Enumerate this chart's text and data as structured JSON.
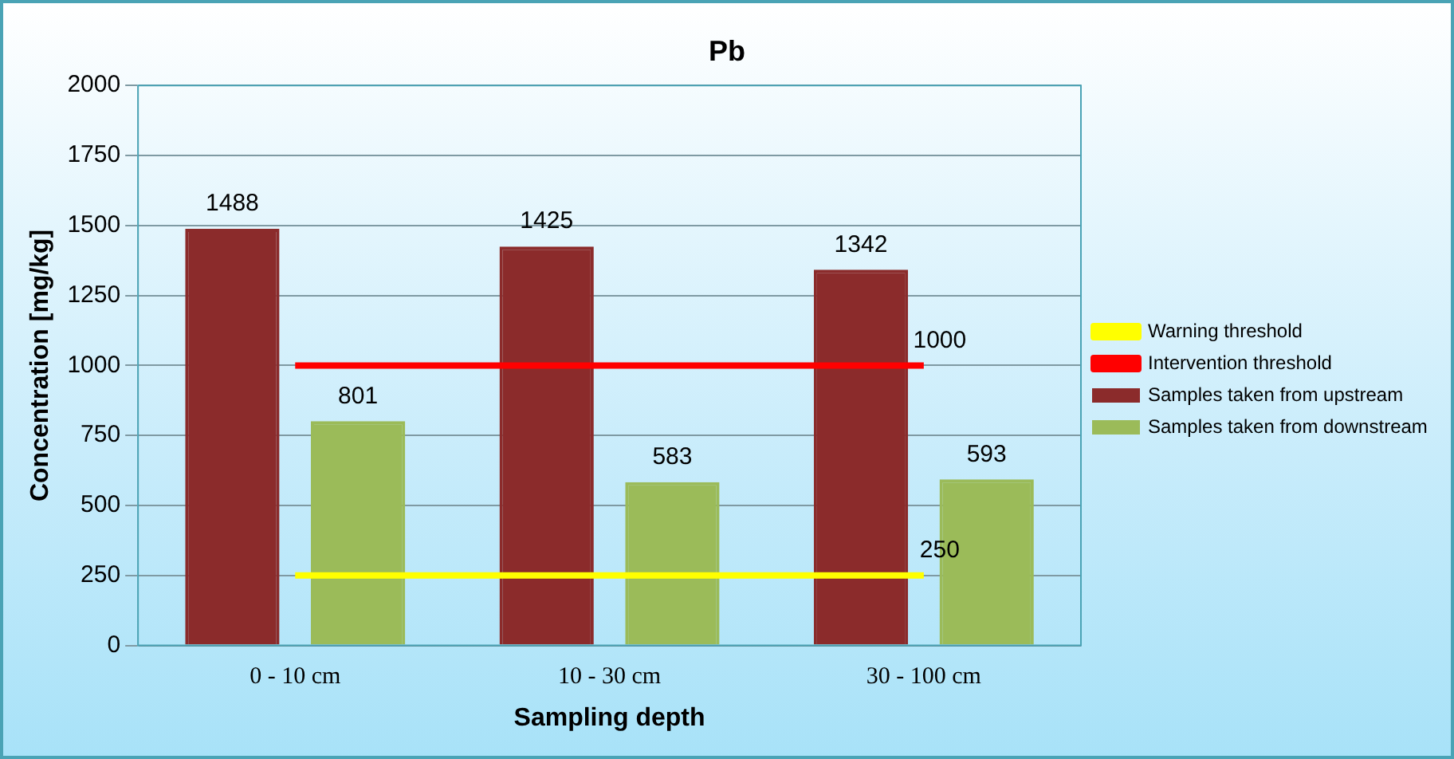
{
  "chart_data": {
    "type": "bar",
    "title": "Pb",
    "xlabel": "Sampling depth",
    "ylabel": "Concentration [mg/kg]",
    "categories": [
      "0 - 10 cm",
      "10 - 30 cm",
      "30 - 100 cm"
    ],
    "series": [
      {
        "name": "Samples taken from upstream",
        "color": "#8b2b2b",
        "values": [
          1488,
          1425,
          1342
        ],
        "value_labels": [
          "1488",
          "1425",
          "1342"
        ]
      },
      {
        "name": "Samples taken from downstream",
        "color": "#9bbb59",
        "values": [
          801,
          583,
          593
        ],
        "value_labels": [
          "801",
          "583",
          "593"
        ]
      },
      {
        "name": "Warning threshold",
        "type": "line",
        "color": "#ffff00",
        "values": [
          250,
          250,
          250
        ],
        "value_labels": [
          null,
          null,
          "250"
        ]
      },
      {
        "name": "Intervention threshold",
        "type": "line",
        "color": "#ff0000",
        "values": [
          1000,
          1000,
          1000
        ],
        "value_labels": [
          null,
          null,
          "1000"
        ]
      }
    ],
    "ylim": [
      0,
      2000
    ],
    "yticks": [
      0,
      250,
      500,
      750,
      1000,
      1250,
      1500,
      1750,
      2000
    ],
    "grid": "y",
    "legend": "right",
    "marker": "none"
  }
}
